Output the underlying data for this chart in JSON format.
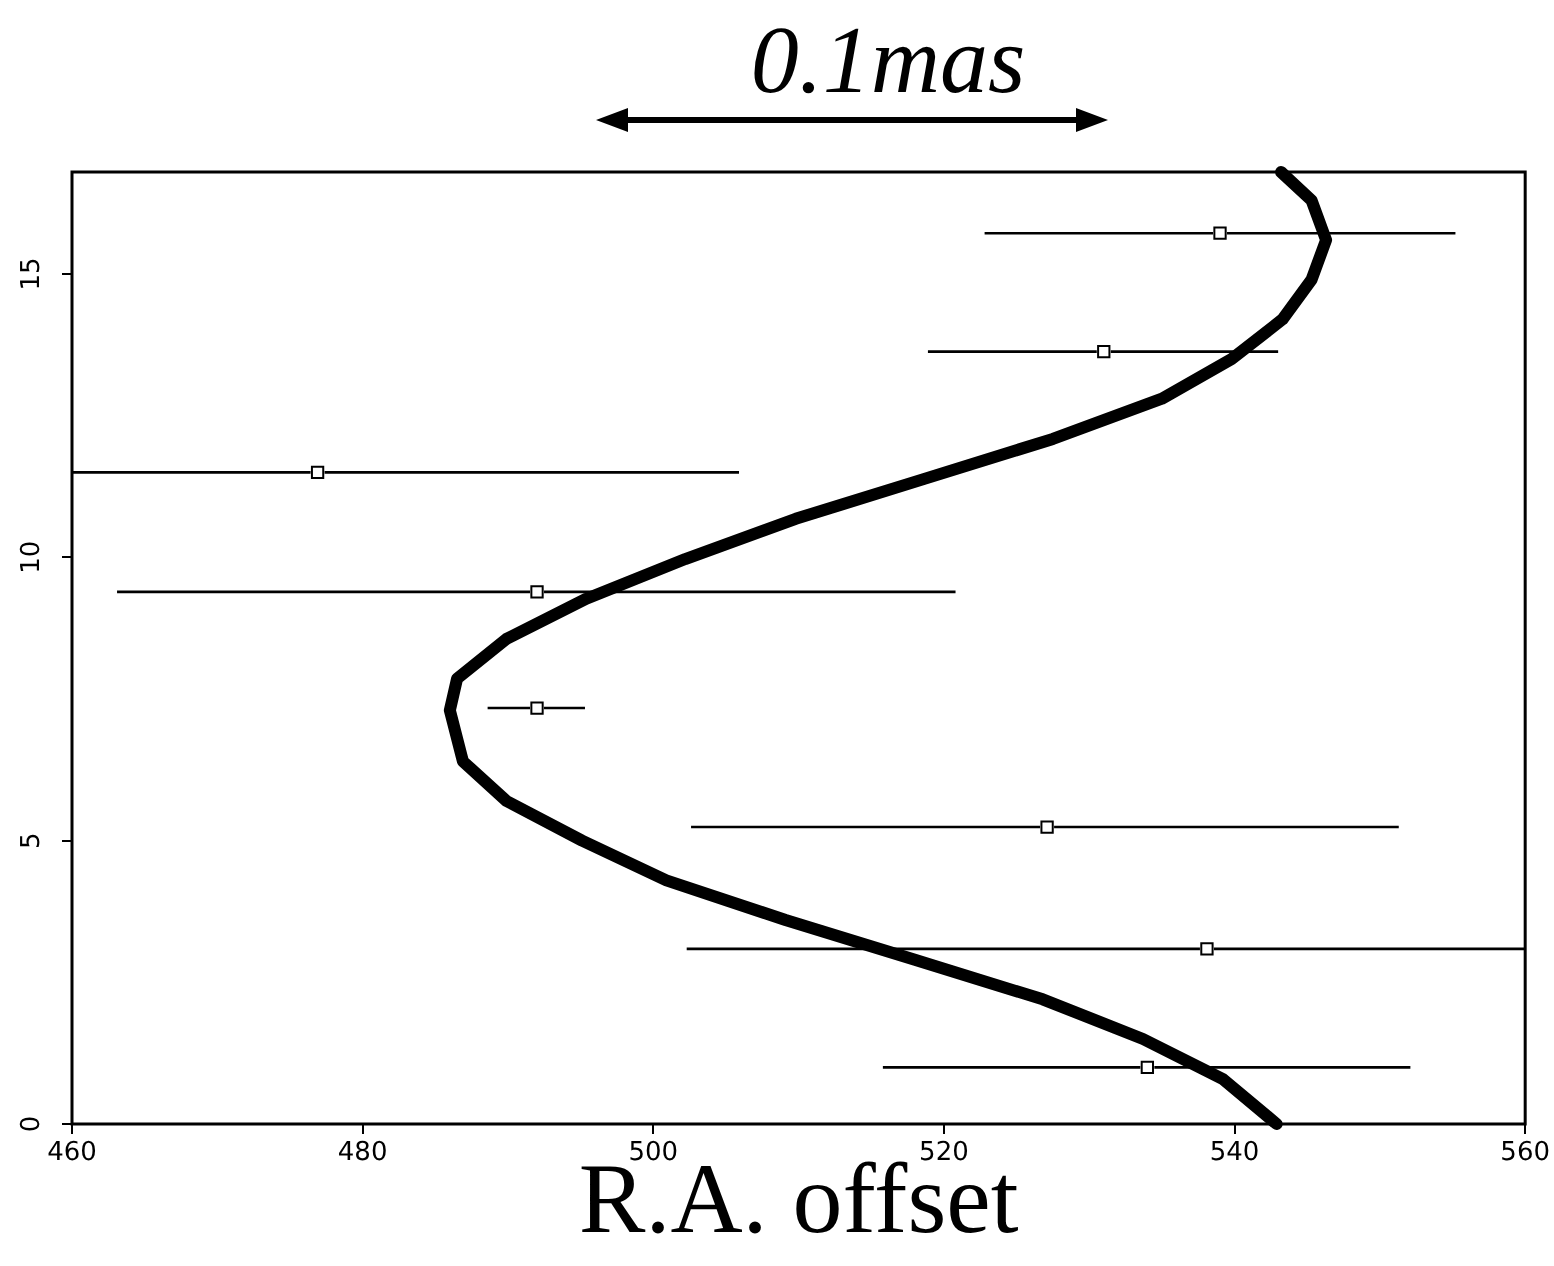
{
  "chart_data": {
    "type": "scatter",
    "xlabel": "R.A. offset",
    "annotations": [
      "0.1mas"
    ],
    "xlim": [
      460,
      560
    ],
    "xticks": [
      460,
      480,
      500,
      520,
      540,
      560
    ],
    "ylim": [
      0,
      16.8
    ],
    "yticks": [
      0,
      5,
      10,
      15
    ],
    "grid": false,
    "legend": false,
    "series": [
      {
        "type": "line",
        "color": "#000000",
        "marker": "none",
        "line_style": "solid",
        "x": [
          542.9,
          539.2,
          533.7,
          526.8,
          518.0,
          509.1,
          500.9,
          495.1,
          489.9,
          486.9,
          486.0,
          486.5,
          489.9,
          495.4,
          502.2,
          509.8,
          518.6,
          527.5,
          535.0,
          539.8,
          543.3,
          545.3,
          546.3,
          545.3,
          543.2
        ],
        "values": [
          0,
          0.79,
          1.5,
          2.2,
          2.9,
          3.6,
          4.3,
          5.0,
          5.7,
          6.4,
          7.3,
          7.86,
          8.56,
          9.27,
          9.97,
          10.68,
          11.38,
          12.09,
          12.8,
          13.5,
          14.2,
          14.9,
          15.6,
          16.3,
          16.8
        ]
      },
      {
        "type": "scatter",
        "color": "#000000",
        "marker": "square",
        "x": [
          534.0,
          538.1,
          527.1,
          492.0,
          492.0,
          476.9,
          531.0,
          539.0
        ],
        "values": [
          1.0,
          3.09,
          5.24,
          7.34,
          9.39,
          11.5,
          13.63,
          15.72
        ],
        "xerrors": [
          [
            515.8,
            552.1
          ],
          [
            502.3,
            560
          ],
          [
            502.6,
            551.3
          ],
          [
            488.6,
            495.3
          ],
          [
            463.1,
            520.8
          ],
          [
            460,
            505.9
          ],
          [
            518.9,
            543.0
          ],
          [
            522.8,
            555.2
          ]
        ]
      }
    ]
  }
}
